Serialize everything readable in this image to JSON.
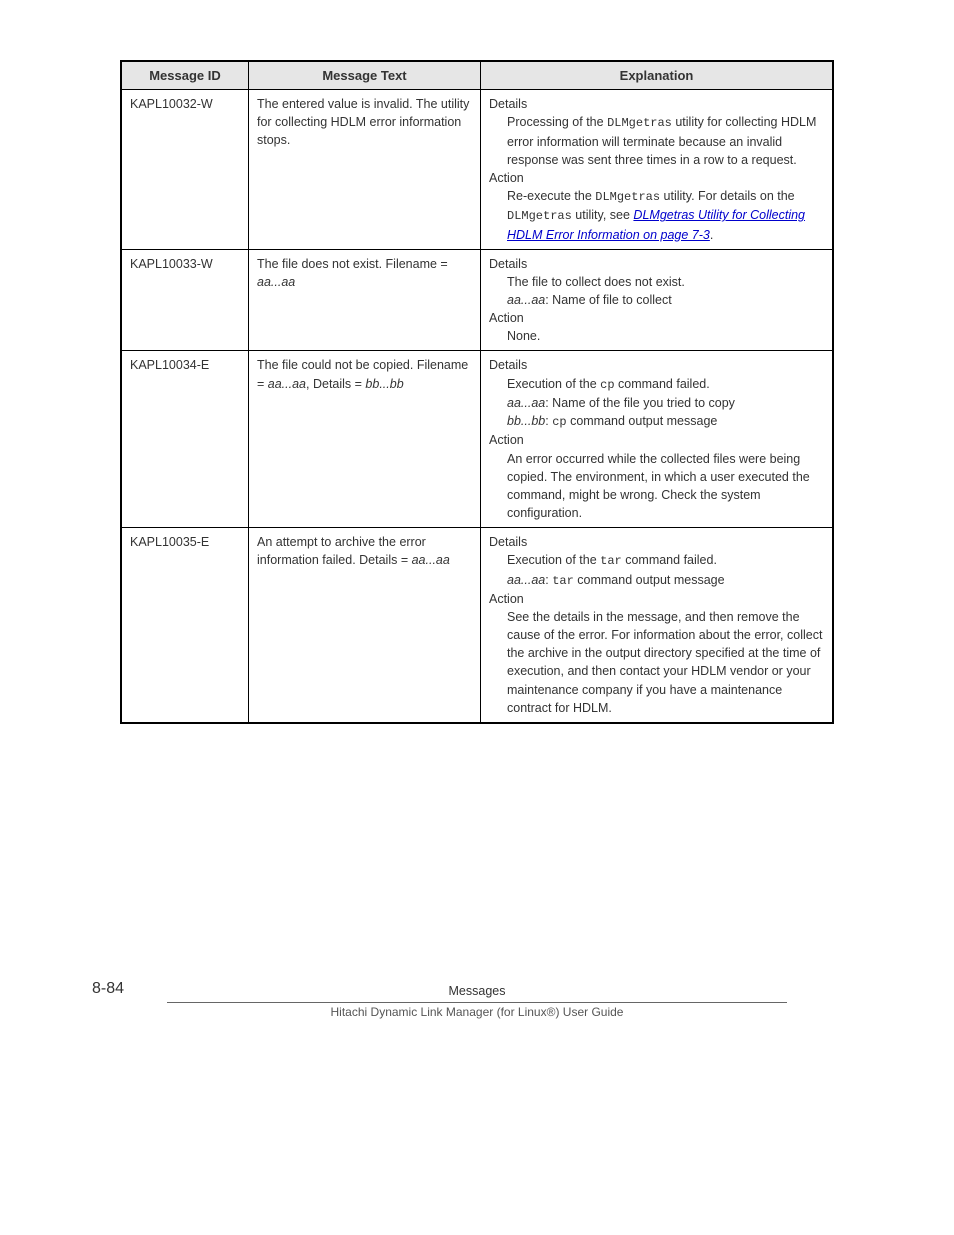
{
  "headers": {
    "col1": "Message ID",
    "col2": "Message Text",
    "col3": "Explanation"
  },
  "rows": {
    "r1": {
      "id": "KAPL10032-W",
      "text": "The entered value is invalid. The utility for collecting HDLM error information stops.",
      "details_label": "Details",
      "details_p1_a": "Processing of the ",
      "details_p1_mono": "DLMgetras",
      "details_p1_b": " utility for collecting HDLM error information will terminate because an invalid response was sent three times in a row to a request.",
      "action_label": "Action",
      "action_p1_a": "Re-execute the ",
      "action_p1_mono1": "DLMgetras",
      "action_p1_b": " utility. For details on the ",
      "action_p1_mono2": "DLMgetras",
      "action_p1_c": " utility, see ",
      "action_link": "DLMgetras Utility for Collecting HDLM Error Information on page 7-3",
      "action_p1_d": "."
    },
    "r2": {
      "id": "KAPL10033-W",
      "text_a": "The file does not exist. Filename = ",
      "text_var": "aa...aa",
      "details_label": "Details",
      "details_p1": "The file to collect does not exist.",
      "details_p2_var": "aa...aa",
      "details_p2": ": Name of file to collect",
      "action_label": "Action",
      "action_p1": "None."
    },
    "r3": {
      "id": "KAPL10034-E",
      "text_a": "The file could not be copied. Filename = ",
      "text_var1": "aa...aa",
      "text_b": ", Details = ",
      "text_var2": "bb...bb",
      "details_label": "Details",
      "details_p1_a": "Execution of the ",
      "details_p1_mono": "cp",
      "details_p1_b": " command failed.",
      "details_p2_var": "aa...aa",
      "details_p2": ": Name of the file you tried to copy",
      "details_p3_var": "bb...bb",
      "details_p3_a": ": ",
      "details_p3_mono": "cp",
      "details_p3_b": " command output message",
      "action_label": "Action",
      "action_p1": "An error occurred while the collected files were being copied. The environment, in which a user executed the command, might be wrong. Check the system configuration."
    },
    "r4": {
      "id": "KAPL10035-E",
      "text_a": "An attempt to archive the error information failed. Details = ",
      "text_var": "aa...aa",
      "details_label": "Details",
      "details_p1_a": "Execution of the ",
      "details_p1_mono": "tar",
      "details_p1_b": " command failed.",
      "details_p2_var": "aa...aa",
      "details_p2_a": ": ",
      "details_p2_mono": "tar",
      "details_p2_b": " command output message",
      "action_label": "Action",
      "action_p1": "See the details in the message, and then remove the cause of the error. For information about the error, collect the archive in the output directory specified at the time of execution, and then contact your HDLM vendor or your maintenance company if you have a maintenance contract for HDLM."
    }
  },
  "footer": {
    "page_num": "8-84",
    "title": "Messages",
    "sub": "Hitachi Dynamic Link Manager (for Linux®) User Guide"
  }
}
